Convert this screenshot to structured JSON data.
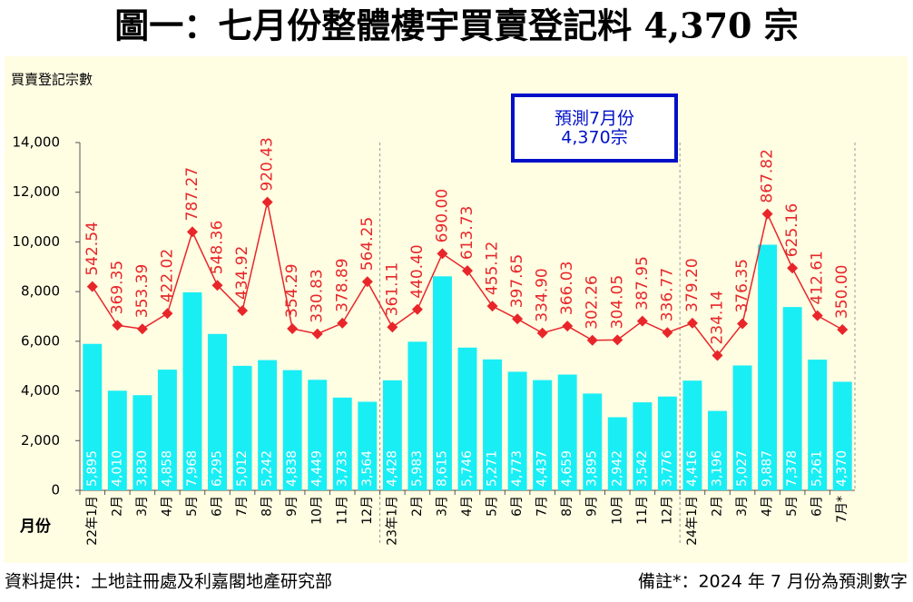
{
  "chart_data": {
    "type": "bar",
    "title": "圖一：七月份整體樓宇買賣登記料 4,370 宗",
    "y_label": "買賣登記宗數",
    "x_label": "月份",
    "annotation": [
      "預測7月份",
      "4,370宗"
    ],
    "source": "資料提供：土地註冊處及利嘉閣地產研究部",
    "note": "備註*：2024 年 7 月份為預測數字",
    "categories": [
      "22年1月",
      "2月",
      "3月",
      "4月",
      "5月",
      "6月",
      "7月",
      "8月",
      "9月",
      "10月",
      "11月",
      "12月",
      "23年1月",
      "2月",
      "3月",
      "4月",
      "5月",
      "6月",
      "7月",
      "8月",
      "9月",
      "10月",
      "11月",
      "12月",
      "24年1月",
      "2月",
      "3月",
      "4月",
      "5月",
      "6月",
      "7月*"
    ],
    "series": [
      {
        "type": "bar",
        "color": "#19eef5",
        "values": [
          5895,
          4010,
          3830,
          4858,
          7968,
          6295,
          5012,
          5242,
          4838,
          4449,
          3733,
          3564,
          4428,
          5983,
          8615,
          5746,
          5271,
          4773,
          4437,
          4659,
          3895,
          2942,
          3542,
          3776,
          4416,
          3196,
          5027,
          9887,
          7378,
          5261,
          4370
        ],
        "value_labels": [
          "5,895",
          "4,010",
          "3,830",
          "4,858",
          "7,968",
          "6,295",
          "5,012",
          "5,242",
          "4,838",
          "4,449",
          "3,733",
          "3,564",
          "4,428",
          "5,983",
          "8,615",
          "5,746",
          "5,271",
          "4,773",
          "4,437",
          "4,659",
          "3,895",
          "2,942",
          "3,542",
          "3,776",
          "4,416",
          "3,196",
          "5,027",
          "9,887",
          "7,378",
          "5,261",
          "4,370"
        ]
      },
      {
        "type": "line",
        "color": "#e8262a",
        "axis": "y2",
        "values": [
          542.54,
          369.35,
          353.39,
          422.02,
          787.27,
          548.36,
          434.92,
          920.43,
          354.29,
          330.83,
          378.89,
          564.25,
          361.11,
          440.4,
          690,
          613.73,
          455.12,
          397.65,
          334.9,
          366.03,
          302.26,
          304.05,
          387.95,
          336.77,
          379.2,
          234.14,
          376.35,
          867.82,
          625.16,
          412.61,
          350
        ],
        "value_labels": [
          "542.54",
          "369.35",
          "353.39",
          "422.02",
          "787.27",
          "548.36",
          "434.92",
          "920.43",
          "354.29",
          "330.83",
          "378.89",
          "564.25",
          "361.11",
          "440.40",
          "690.00",
          "613.73",
          "455.12",
          "397.65",
          "334.90",
          "366.03",
          "302.26",
          "304.05",
          "387.95",
          "336.77",
          "379.20",
          "234.14",
          "376.35",
          "867.82",
          "625.16",
          "412.61",
          "350.00"
        ]
      }
    ],
    "ylim": [
      0,
      14000
    ],
    "yticks": [
      0,
      {
        "value": 2000,
        "label": "2,000"
      },
      {
        "value": 4000,
        "label": "4,000"
      },
      {
        "value": 6000,
        "label": "6,000"
      },
      {
        "value": 8000,
        "label": "8,000"
      },
      {
        "value": 10000,
        "label": "10,000"
      },
      {
        "value": 12000,
        "label": "12,000"
      },
      {
        "value": 14000,
        "label": "14,000"
      }
    ],
    "y2lim": [
      -369,
      1187
    ]
  }
}
